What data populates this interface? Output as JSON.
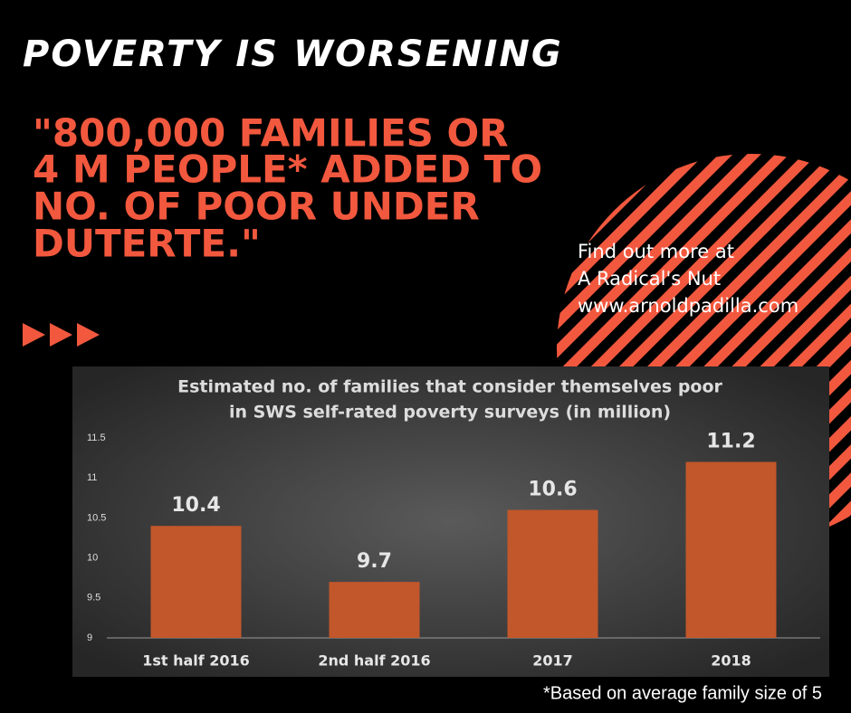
{
  "title": "POVERTY IS WORSENING",
  "quote": [
    "\"800,000 FAMILIES OR",
    "4 M PEOPLE* ADDED TO",
    "NO. OF POOR UNDER",
    "DUTERTE.\""
  ],
  "links": [
    "Find out more at",
    "A Radical's Nut",
    "www.arnoldpadilla.com"
  ],
  "footnote": "*Based on average family size of 5",
  "chart_data": {
    "type": "bar",
    "title": [
      "Estimated no. of families that consider themselves poor",
      "in SWS self-rated poverty surveys (in million)"
    ],
    "categories": [
      "1st half 2016",
      "2nd half 2016",
      "2017",
      "2018"
    ],
    "values": [
      10.4,
      9.7,
      10.6,
      11.2
    ],
    "color": "#c2572b",
    "ylim": [
      9,
      11.5
    ],
    "yticks": [
      9,
      9.5,
      10,
      10.5,
      11,
      11.5
    ],
    "grid": false
  }
}
